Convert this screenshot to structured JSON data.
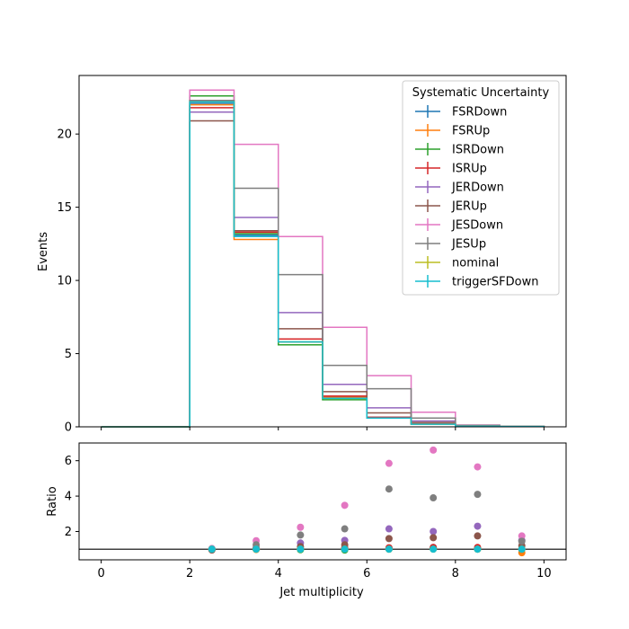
{
  "chart_data": {
    "type": "step-histogram-with-ratio",
    "main": {
      "ylabel": "Events",
      "ylim": [
        0,
        24
      ],
      "yticks": [
        0,
        5,
        10,
        15,
        20
      ],
      "xlim": [
        -0.5,
        10.5
      ],
      "bin_edges": [
        0,
        1,
        2,
        3,
        4,
        5,
        6,
        7,
        8,
        9,
        10
      ],
      "series": [
        {
          "name": "FSRDown",
          "color": "#1f77b4",
          "values": [
            0,
            0,
            22.1,
            13.1,
            5.8,
            2.0,
            0.65,
            0.2,
            0.05,
            0.02
          ]
        },
        {
          "name": "FSRUp",
          "color": "#ff7f0e",
          "values": [
            0,
            0,
            22.0,
            12.8,
            5.8,
            2.0,
            0.6,
            0.2,
            0.05,
            0.02
          ]
        },
        {
          "name": "ISRDown",
          "color": "#2ca02c",
          "values": [
            0,
            0,
            22.6,
            13.2,
            5.6,
            1.85,
            0.6,
            0.2,
            0.05,
            0.02
          ]
        },
        {
          "name": "ISRUp",
          "color": "#d62728",
          "values": [
            0,
            0,
            21.8,
            13.3,
            6.0,
            2.1,
            0.65,
            0.2,
            0.05,
            0.02
          ]
        },
        {
          "name": "JERDown",
          "color": "#9467bd",
          "values": [
            0,
            0,
            21.5,
            14.3,
            7.8,
            2.9,
            1.3,
            0.4,
            0.1,
            0.03
          ]
        },
        {
          "name": "JERUp",
          "color": "#8c564b",
          "values": [
            0,
            0,
            20.9,
            13.4,
            6.7,
            2.4,
            0.95,
            0.3,
            0.08,
            0.02
          ]
        },
        {
          "name": "JESDown",
          "color": "#e377c2",
          "values": [
            0,
            0,
            23.0,
            19.3,
            13.0,
            6.8,
            3.5,
            1.0,
            0.12,
            0.04
          ]
        },
        {
          "name": "JESUp",
          "color": "#7f7f7f",
          "values": [
            0,
            0,
            22.3,
            16.3,
            10.4,
            4.2,
            2.6,
            0.6,
            0.1,
            0.03
          ]
        },
        {
          "name": "nominal",
          "color": "#bcbd22",
          "values": [
            0,
            0,
            22.2,
            13.0,
            5.8,
            1.95,
            0.6,
            0.18,
            0.04,
            0.02
          ]
        },
        {
          "name": "triggerSFDown",
          "color": "#17becf",
          "values": [
            0,
            0,
            22.2,
            13.0,
            5.8,
            1.95,
            0.6,
            0.18,
            0.04,
            0.02
          ]
        }
      ]
    },
    "ratio": {
      "ylabel": "Ratio",
      "xlabel": "Jet multiplicity",
      "ylim": [
        0.4,
        7.0
      ],
      "yticks": [
        2,
        4,
        6
      ],
      "reference_line": 1,
      "xticks": [
        0,
        2,
        4,
        6,
        8,
        10
      ],
      "x": [
        2.5,
        3.5,
        4.5,
        5.5,
        6.5,
        7.5,
        8.5,
        9.5
      ],
      "series": [
        {
          "name": "FSRDown",
          "color": "#1f77b4",
          "values": [
            1.0,
            1.0,
            1.0,
            1.02,
            1.05,
            1.1,
            1.05,
            1.0
          ]
        },
        {
          "name": "FSRUp",
          "color": "#ff7f0e",
          "values": [
            0.99,
            0.98,
            1.0,
            1.02,
            1.0,
            1.05,
            1.0,
            0.8
          ]
        },
        {
          "name": "ISRDown",
          "color": "#2ca02c",
          "values": [
            1.02,
            1.0,
            0.97,
            0.95,
            1.0,
            1.05,
            1.0,
            1.0
          ]
        },
        {
          "name": "ISRUp",
          "color": "#d62728",
          "values": [
            0.98,
            1.02,
            1.03,
            1.08,
            1.08,
            1.1,
            1.1,
            1.0
          ]
        },
        {
          "name": "JERDown",
          "color": "#9467bd",
          "values": [
            0.97,
            1.1,
            1.35,
            1.5,
            2.15,
            2.0,
            2.3,
            1.5
          ]
        },
        {
          "name": "JERUp",
          "color": "#8c564b",
          "values": [
            0.95,
            1.03,
            1.15,
            1.25,
            1.6,
            1.65,
            1.75,
            1.2
          ]
        },
        {
          "name": "JESDown",
          "color": "#e377c2",
          "values": [
            1.04,
            1.48,
            2.24,
            3.48,
            5.85,
            6.6,
            5.65,
            1.75
          ]
        },
        {
          "name": "JESUp",
          "color": "#7f7f7f",
          "values": [
            1.0,
            1.25,
            1.8,
            2.15,
            4.4,
            3.9,
            4.1,
            1.45
          ]
        },
        {
          "name": "nominal",
          "color": "#bcbd22",
          "values": [
            1.0,
            1.0,
            1.0,
            1.0,
            1.0,
            1.0,
            1.0,
            1.0
          ]
        },
        {
          "name": "triggerSFDown",
          "color": "#17becf",
          "values": [
            1.0,
            1.0,
            1.0,
            1.0,
            1.0,
            1.0,
            1.0,
            1.0
          ]
        }
      ]
    },
    "legend": {
      "title": "Systematic Uncertainty",
      "placement": "top-right"
    }
  }
}
